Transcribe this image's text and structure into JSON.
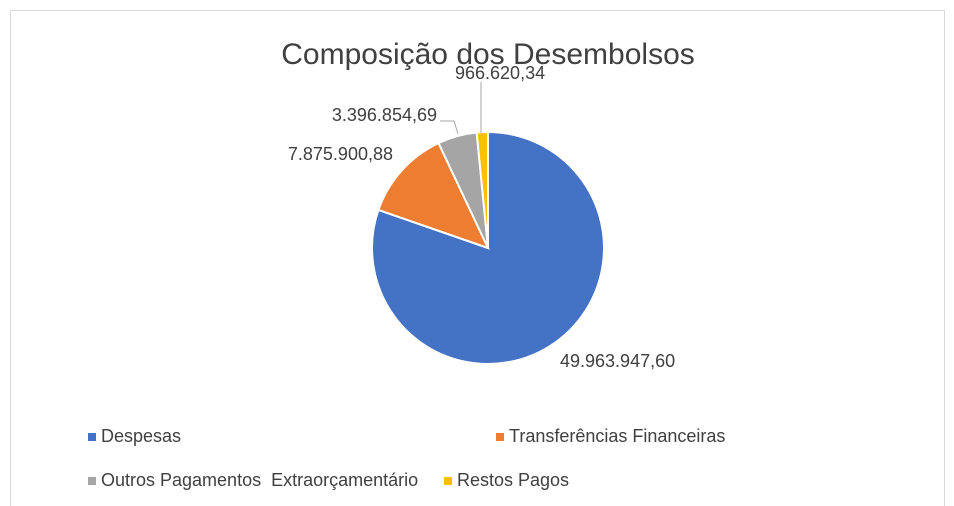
{
  "chart_data": {
    "type": "pie",
    "title": "Composição dos Desembolsos",
    "categories": [
      "Despesas",
      "Transferências Financeiras",
      "Outros Pagamentos  Extraorçamentário",
      "Restos Pagos"
    ],
    "values": [
      49963947.6,
      7875900.88,
      3396854.69,
      966620.34
    ],
    "value_labels": [
      "49.963.947,60",
      "7.875.900,88",
      "3.396.854,69",
      "966.620,34"
    ],
    "colors": [
      "#4472c4",
      "#ed7d31",
      "#a5a5a5",
      "#ffc000"
    ],
    "legend": "bottom"
  }
}
